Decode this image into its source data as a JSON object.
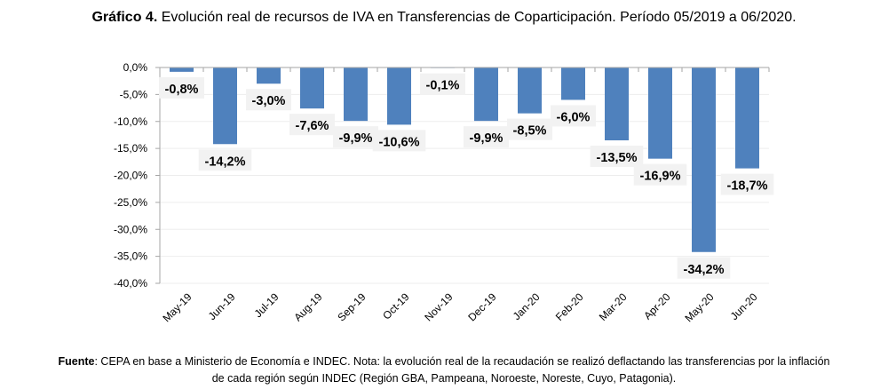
{
  "chart_data": {
    "type": "bar",
    "title_bold": "Gráfico 4.",
    "title": "Evolución real de recursos de IVA en Transferencias de Coparticipación. Período 05/2019 a 06/2020.",
    "categories": [
      "May-19",
      "Jun-19",
      "Jul-19",
      "Aug-19",
      "Sep-19",
      "Oct-19",
      "Nov-19",
      "Dec-19",
      "Jan-20",
      "Feb-20",
      "Mar-20",
      "Apr-20",
      "May-20",
      "Jun-20"
    ],
    "values": [
      -0.8,
      -14.2,
      -3.0,
      -7.6,
      -9.9,
      -10.6,
      -0.1,
      -9.9,
      -8.5,
      -6.0,
      -13.5,
      -16.9,
      -34.2,
      -18.7
    ],
    "data_labels": [
      "-0,8%",
      "-14,2%",
      "-3,0%",
      "-7,6%",
      "-9,9%",
      "-10,6%",
      "-0,1%",
      "-9,9%",
      "-8,5%",
      "-6,0%",
      "-13,5%",
      "-16,9%",
      "-34,2%",
      "-18,7%"
    ],
    "ylim": [
      -40,
      0
    ],
    "yticks": [
      "0,0%",
      "-5,0%",
      "-10,0%",
      "-15,0%",
      "-20,0%",
      "-25,0%",
      "-30,0%",
      "-35,0%",
      "-40,0%"
    ],
    "xlabel": "",
    "ylabel": "",
    "grid": true,
    "legend": "none",
    "bar_color": "#4f81bd",
    "label_bg": "#f2f2f2"
  },
  "footer": {
    "source_bold": "Fuente",
    "text": ": CEPA en base a Ministerio de Economía e INDEC. Nota: la evolución real de la recaudación se realizó deflactando las transferencias por la inflación de cada región según INDEC (Región GBA, Pampeana, Noroeste, Noreste, Cuyo, Patagonia)."
  }
}
